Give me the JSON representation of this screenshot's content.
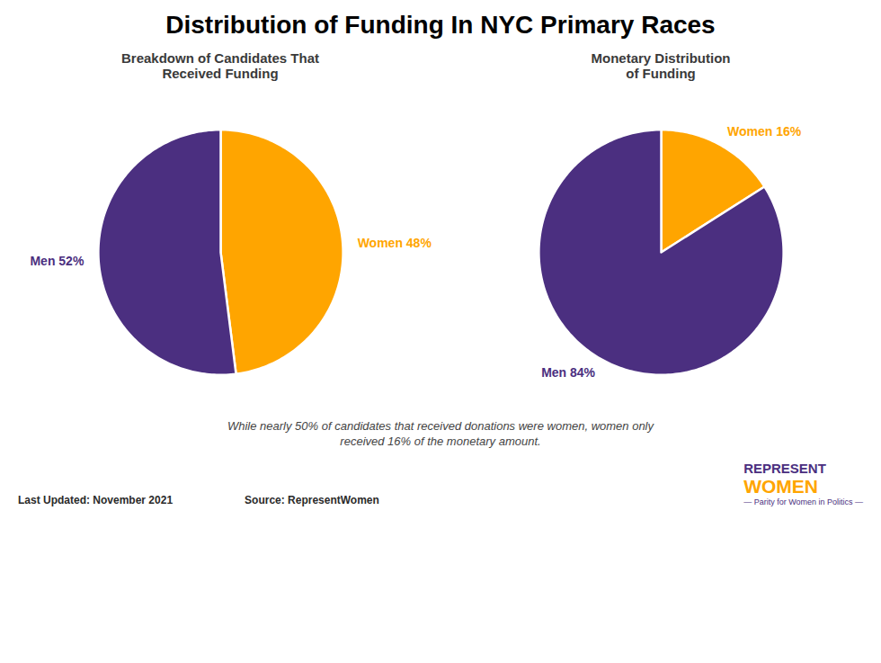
{
  "title": "Distribution of Funding In NYC Primary Races",
  "chart_data": [
    {
      "type": "pie",
      "title": "Breakdown of Candidates That\nReceived Funding",
      "categories": [
        "Women",
        "Men"
      ],
      "values": [
        48,
        52
      ],
      "value_labels": [
        "Women 48%",
        "Men 52%"
      ],
      "colors": [
        "#FFA500",
        "#4B2F80"
      ],
      "data_labels": true
    },
    {
      "type": "pie",
      "title": "Monetary Distribution\nof Funding",
      "categories": [
        "Women",
        "Men"
      ],
      "values": [
        16,
        84
      ],
      "value_labels": [
        "Women 16%",
        "Men 84%"
      ],
      "colors": [
        "#FFA500",
        "#4B2F80"
      ],
      "data_labels": true
    }
  ],
  "annotations": [
    "While nearly 50% of candidates that received donations were women, women only",
    "received 16% of the monetary amount."
  ],
  "footer": [
    "Last Updated:  November 2021",
    "Source: RepresentWomen"
  ],
  "logo": [
    "REPRESENT",
    "WOMEN",
    "— Parity for Women in Politics —"
  ]
}
